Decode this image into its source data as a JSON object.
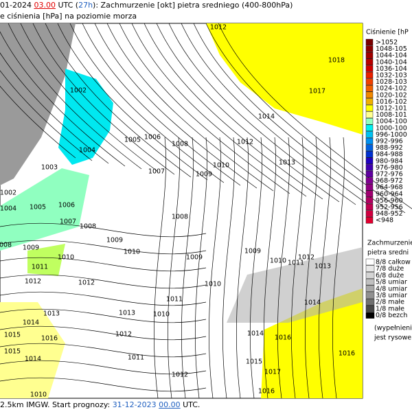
{
  "header": {
    "date": "01-2024",
    "time": "03.00",
    "utc": "UTC (",
    "lead": "27h",
    "title": "): Zachmurzenie [okt] pietra sredniego (400-800hPa)",
    "subtitle": "e ciśnienia [hPa] na poziomie morza"
  },
  "legend_pressure": {
    "title": "Ciśnienie [hP",
    "items": [
      {
        "label": ">1052",
        "color": "#7a0000"
      },
      {
        "label": "1048-105",
        "color": "#8c0000"
      },
      {
        "label": "1044-104",
        "color": "#a00000"
      },
      {
        "label": "1040-104",
        "color": "#b80000"
      },
      {
        "label": "1036-104",
        "color": "#d00000"
      },
      {
        "label": "1032-103",
        "color": "#e82000"
      },
      {
        "label": "1028-103",
        "color": "#f04000"
      },
      {
        "label": "1024-102",
        "color": "#f06000"
      },
      {
        "label": "1020-102",
        "color": "#f08800"
      },
      {
        "label": "1016-102",
        "color": "#f0b000"
      },
      {
        "label": "1012-101",
        "color": "#ffff00"
      },
      {
        "label": "1008-101",
        "color": "#ffff90"
      },
      {
        "label": "1004-100",
        "color": "#90ffc0"
      },
      {
        "label": "1000-100",
        "color": "#00f0f0"
      },
      {
        "label": "996-1000",
        "color": "#00c0f0"
      },
      {
        "label": "992-996",
        "color": "#0090f0"
      },
      {
        "label": "988-992",
        "color": "#0060e0"
      },
      {
        "label": "984-988",
        "color": "#0030d0"
      },
      {
        "label": "980-984",
        "color": "#2000c0"
      },
      {
        "label": "976-980",
        "color": "#4000b0"
      },
      {
        "label": "972-976",
        "color": "#6000a0"
      },
      {
        "label": "968-972",
        "color": "#800090"
      },
      {
        "label": "964-968",
        "color": "#900080"
      },
      {
        "label": "960-964",
        "color": "#a00070"
      },
      {
        "label": "956-960",
        "color": "#b00060"
      },
      {
        "label": "952-956",
        "color": "#c00050"
      },
      {
        "label": "948-952",
        "color": "#d00040"
      },
      {
        "label": "<948",
        "color": "#e00030"
      }
    ]
  },
  "legend_clouds": {
    "title": [
      "Zachmurzenie",
      "pietra sredni"
    ],
    "items": [
      {
        "label": "8/8 całkow",
        "color": "#ffffff"
      },
      {
        "label": "7/8 duże",
        "color": "#e8e8e8"
      },
      {
        "label": "6/8 duże",
        "color": "#d4d4d4"
      },
      {
        "label": "5/8 umiar",
        "color": "#c0c0c0"
      },
      {
        "label": "4/8 umiar",
        "color": "#a8a8a8"
      },
      {
        "label": "3/8 umiar",
        "color": "#909090"
      },
      {
        "label": "2/8 małe",
        "color": "#707070"
      },
      {
        "label": "1/8 małe",
        "color": "#484848"
      },
      {
        "label": "0/8 bezch",
        "color": "#000000"
      }
    ],
    "note": [
      "(wypełnieni",
      "jest rysowe"
    ]
  },
  "map": {
    "isobar_labels": [
      "1012",
      "1018",
      "1017",
      "1002",
      "1014",
      "1005",
      "1006",
      "1008",
      "1012",
      "1004",
      "1003",
      "1007",
      "1010",
      "1009",
      "1013",
      "1002",
      "1004",
      "1005",
      "1006",
      "1007",
      "1008",
      "1008",
      "1009",
      "1008",
      "1009",
      "1010",
      "1010",
      "1011",
      "1009",
      "1009",
      "1010",
      "1011",
      "1012",
      "1013",
      "1012",
      "1012",
      "1010",
      "1014",
      "1013",
      "1013",
      "1011",
      "1010",
      "1012",
      "1014",
      "1015",
      "1016",
      "1014",
      "1016",
      "1015",
      "1014",
      "1011",
      "1016",
      "1015",
      "1012",
      "1017",
      "1016",
      "1010"
    ]
  },
  "footer": {
    "model": "2.5km IMGW. Start prognozy:",
    "start_date": "31-12-2023",
    "start_time": "00.00",
    "utc": "UTC."
  }
}
